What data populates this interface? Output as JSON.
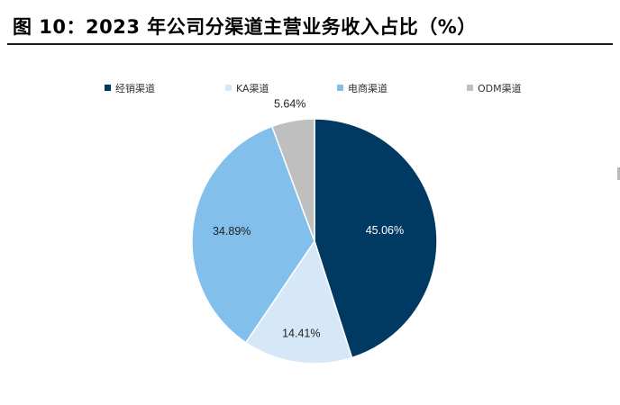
{
  "figure": {
    "title": "图 10：2023 年公司分渠道主营业务收入占比（%）"
  },
  "chart_data": {
    "type": "pie",
    "title": "",
    "labels": [
      "经销渠道",
      "KA渠道",
      "电商渠道",
      "ODM渠道"
    ],
    "values": [
      45.06,
      14.41,
      34.89,
      5.64
    ],
    "value_labels": [
      "45.06%",
      "14.41%",
      "34.89%",
      "5.64%"
    ],
    "colors": [
      "#003a63",
      "#d6e7f7",
      "#82bfeb",
      "#bfbfbf"
    ],
    "label_colors": [
      "#ffffff",
      "#222222",
      "#222222",
      "#222222"
    ],
    "start": "12 o'clock",
    "direction": "clockwise",
    "legend_position": "top"
  }
}
